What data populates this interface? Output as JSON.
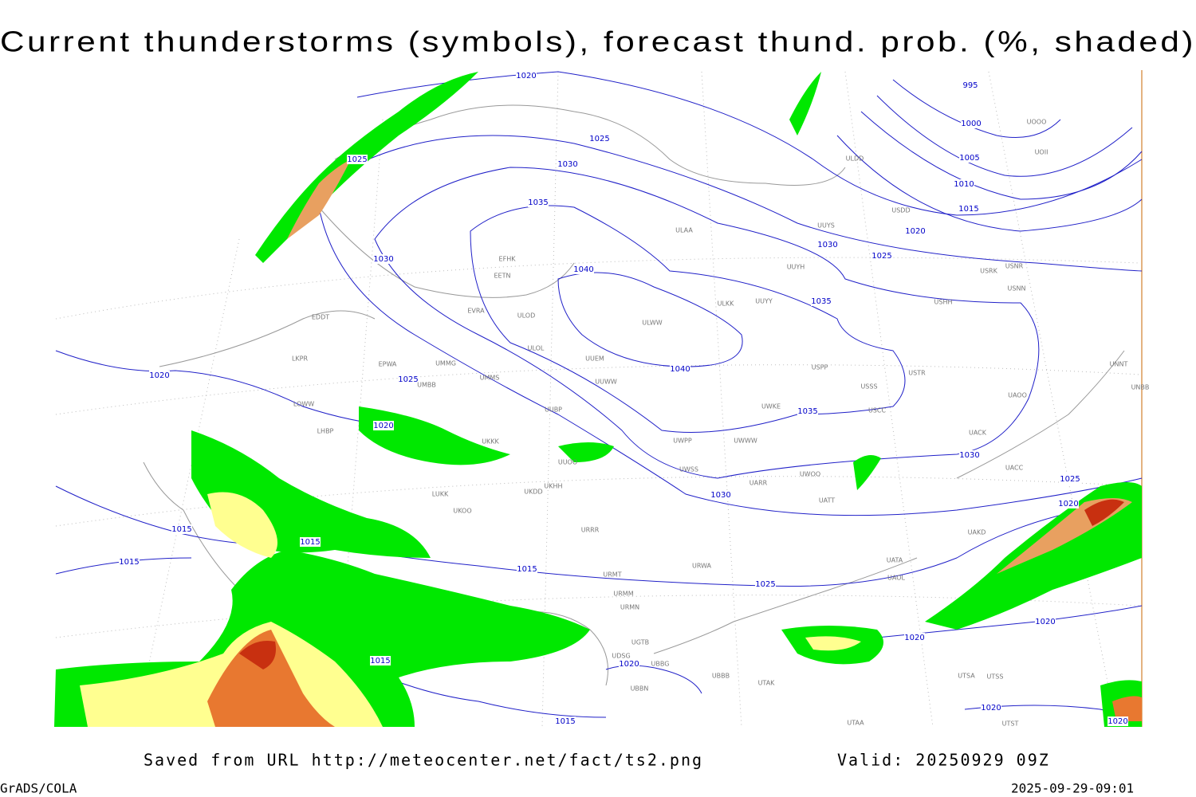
{
  "header": {
    "title": "Current thunderstorms (symbols), forecast thund. prob. (%, shaded)"
  },
  "footer": {
    "source": "Saved from URL http://meteocenter.net/fact/ts2.png",
    "valid": "Valid: 20250929 09Z",
    "software": "GrADS/COLA",
    "timestamp": "2025-09-29-09:01"
  },
  "isobar_labels": [
    "1020",
    "1025",
    "1025",
    "1030",
    "1035",
    "1030",
    "1040",
    "1040",
    "1035",
    "1030",
    "1025",
    "1020",
    "1015",
    "1010",
    "1005",
    "1000",
    "995",
    "1020",
    "1025",
    "1020",
    "1035",
    "1030",
    "1030",
    "1025",
    "1020",
    "1015",
    "1015",
    "1015",
    "1015",
    "1025",
    "1020",
    "1020",
    "1015",
    "1020",
    "1015",
    "1020",
    "1020"
  ],
  "stations": [
    "EFHK",
    "EETN",
    "EVRA",
    "ULOD",
    "ULOL",
    "UUEM",
    "UUWW",
    "ULWW",
    "ULKK",
    "UUYY",
    "UUYH",
    "ULAA",
    "ULDD",
    "UUYS",
    "USSS",
    "USPP",
    "USTR",
    "USCC",
    "UWKE",
    "UWWW",
    "UWPP",
    "UWSS",
    "UARR",
    "UWOO",
    "UATT",
    "UACC",
    "UACK",
    "UAOO",
    "UNNT",
    "UNBB",
    "UAKD",
    "UATA",
    "UAOL",
    "URWA",
    "URRR",
    "UKKK",
    "EDDT",
    "EPWA",
    "LKPR",
    "LOWW",
    "LHBP",
    "UMMG",
    "UMMS",
    "UMBB",
    "UUBP",
    "UUOO",
    "UKDD",
    "UKHH",
    "UKOO",
    "LUKK",
    "URMT",
    "URMM",
    "URMN",
    "UGTB",
    "UDSG",
    "UBBG",
    "UBBN",
    "UBBB",
    "UTAK",
    "UTAA",
    "UTSA",
    "UTSS",
    "UTST",
    "USRK",
    "USNR",
    "USNN",
    "USHH",
    "USDD",
    "UOOO",
    "UOII"
  ]
}
